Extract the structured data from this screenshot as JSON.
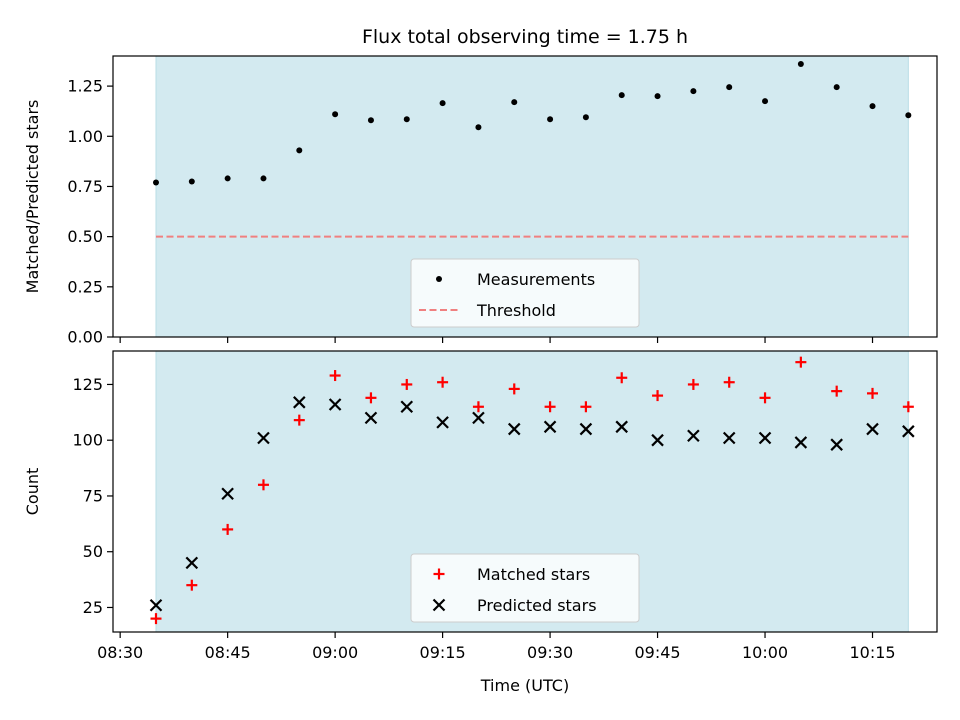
{
  "figure": {
    "title": "Flux total observing time = 1.75 h"
  },
  "chart_data": [
    {
      "type": "scatter",
      "panel": "top",
      "title": "Flux total observing time = 1.75 h",
      "xlabel": "",
      "ylabel": "Matched/Predicted stars",
      "xlim": [
        "08:29",
        "10:24"
      ],
      "ylim": [
        0,
        1.4
      ],
      "yticks": [
        0,
        0.25,
        0.5,
        0.75,
        1.0,
        1.25
      ],
      "ytick_labels": [
        "0.00",
        "0.25",
        "0.50",
        "0.75",
        "1.00",
        "1.25"
      ],
      "xticks": [
        "08:30",
        "08:45",
        "09:00",
        "09:15",
        "09:30",
        "09:45",
        "10:00",
        "10:15"
      ],
      "shaded_span": {
        "x": [
          "08:35",
          "10:20"
        ],
        "color": "#d3eaf0"
      },
      "legend_placement": "lower center",
      "grid": false,
      "series": [
        {
          "name": "Measurements",
          "style": "dot",
          "color": "#000000",
          "x": [
            "08:35",
            "08:40",
            "08:45",
            "08:50",
            "08:55",
            "09:00",
            "09:05",
            "09:10",
            "09:15",
            "09:20",
            "09:25",
            "09:30",
            "09:35",
            "09:40",
            "09:45",
            "09:50",
            "09:55",
            "10:00",
            "10:05",
            "10:10",
            "10:15",
            "10:20"
          ],
          "y": [
            0.77,
            0.775,
            0.79,
            0.79,
            0.93,
            1.11,
            1.08,
            1.085,
            1.165,
            1.045,
            1.17,
            1.085,
            1.095,
            1.205,
            1.2,
            1.225,
            1.245,
            1.175,
            1.36,
            1.245,
            1.15,
            1.105
          ]
        },
        {
          "name": "Threshold",
          "style": "dashed-line",
          "color": "#f08080",
          "x": [
            "08:35",
            "10:20"
          ],
          "y": [
            0.5,
            0.5
          ]
        }
      ]
    },
    {
      "type": "scatter",
      "panel": "bottom",
      "xlabel": "Time (UTC)",
      "ylabel": "Count",
      "xlim": [
        "08:29",
        "10:24"
      ],
      "ylim": [
        14,
        140
      ],
      "yticks": [
        25,
        50,
        75,
        100,
        125
      ],
      "ytick_labels": [
        "25",
        "50",
        "75",
        "100",
        "125"
      ],
      "xticks": [
        "08:30",
        "08:45",
        "09:00",
        "09:15",
        "09:30",
        "09:45",
        "10:00",
        "10:15"
      ],
      "shaded_span": {
        "x": [
          "08:35",
          "10:20"
        ],
        "color": "#d3eaf0"
      },
      "legend_placement": "lower center",
      "grid": false,
      "series": [
        {
          "name": "Matched stars",
          "style": "plus",
          "color": "#ff0000",
          "x": [
            "08:35",
            "08:40",
            "08:45",
            "08:50",
            "08:55",
            "09:00",
            "09:05",
            "09:10",
            "09:15",
            "09:20",
            "09:25",
            "09:30",
            "09:35",
            "09:40",
            "09:45",
            "09:50",
            "09:55",
            "10:00",
            "10:05",
            "10:10",
            "10:15",
            "10:20"
          ],
          "y": [
            20,
            35,
            60,
            80,
            109,
            129,
            119,
            125,
            126,
            115,
            123,
            115,
            115,
            128,
            120,
            125,
            126,
            119,
            135,
            122,
            121,
            115
          ]
        },
        {
          "name": "Predicted stars",
          "style": "x",
          "color": "#000000",
          "x": [
            "08:35",
            "08:40",
            "08:45",
            "08:50",
            "08:55",
            "09:00",
            "09:05",
            "09:10",
            "09:15",
            "09:20",
            "09:25",
            "09:30",
            "09:35",
            "09:40",
            "09:45",
            "09:50",
            "09:55",
            "10:00",
            "10:05",
            "10:10",
            "10:15",
            "10:20"
          ],
          "y": [
            26,
            45,
            76,
            101,
            117,
            116,
            110,
            115,
            108,
            110,
            105,
            106,
            105,
            106,
            100,
            102,
            101,
            101,
            99,
            98,
            105,
            104
          ]
        }
      ]
    }
  ]
}
